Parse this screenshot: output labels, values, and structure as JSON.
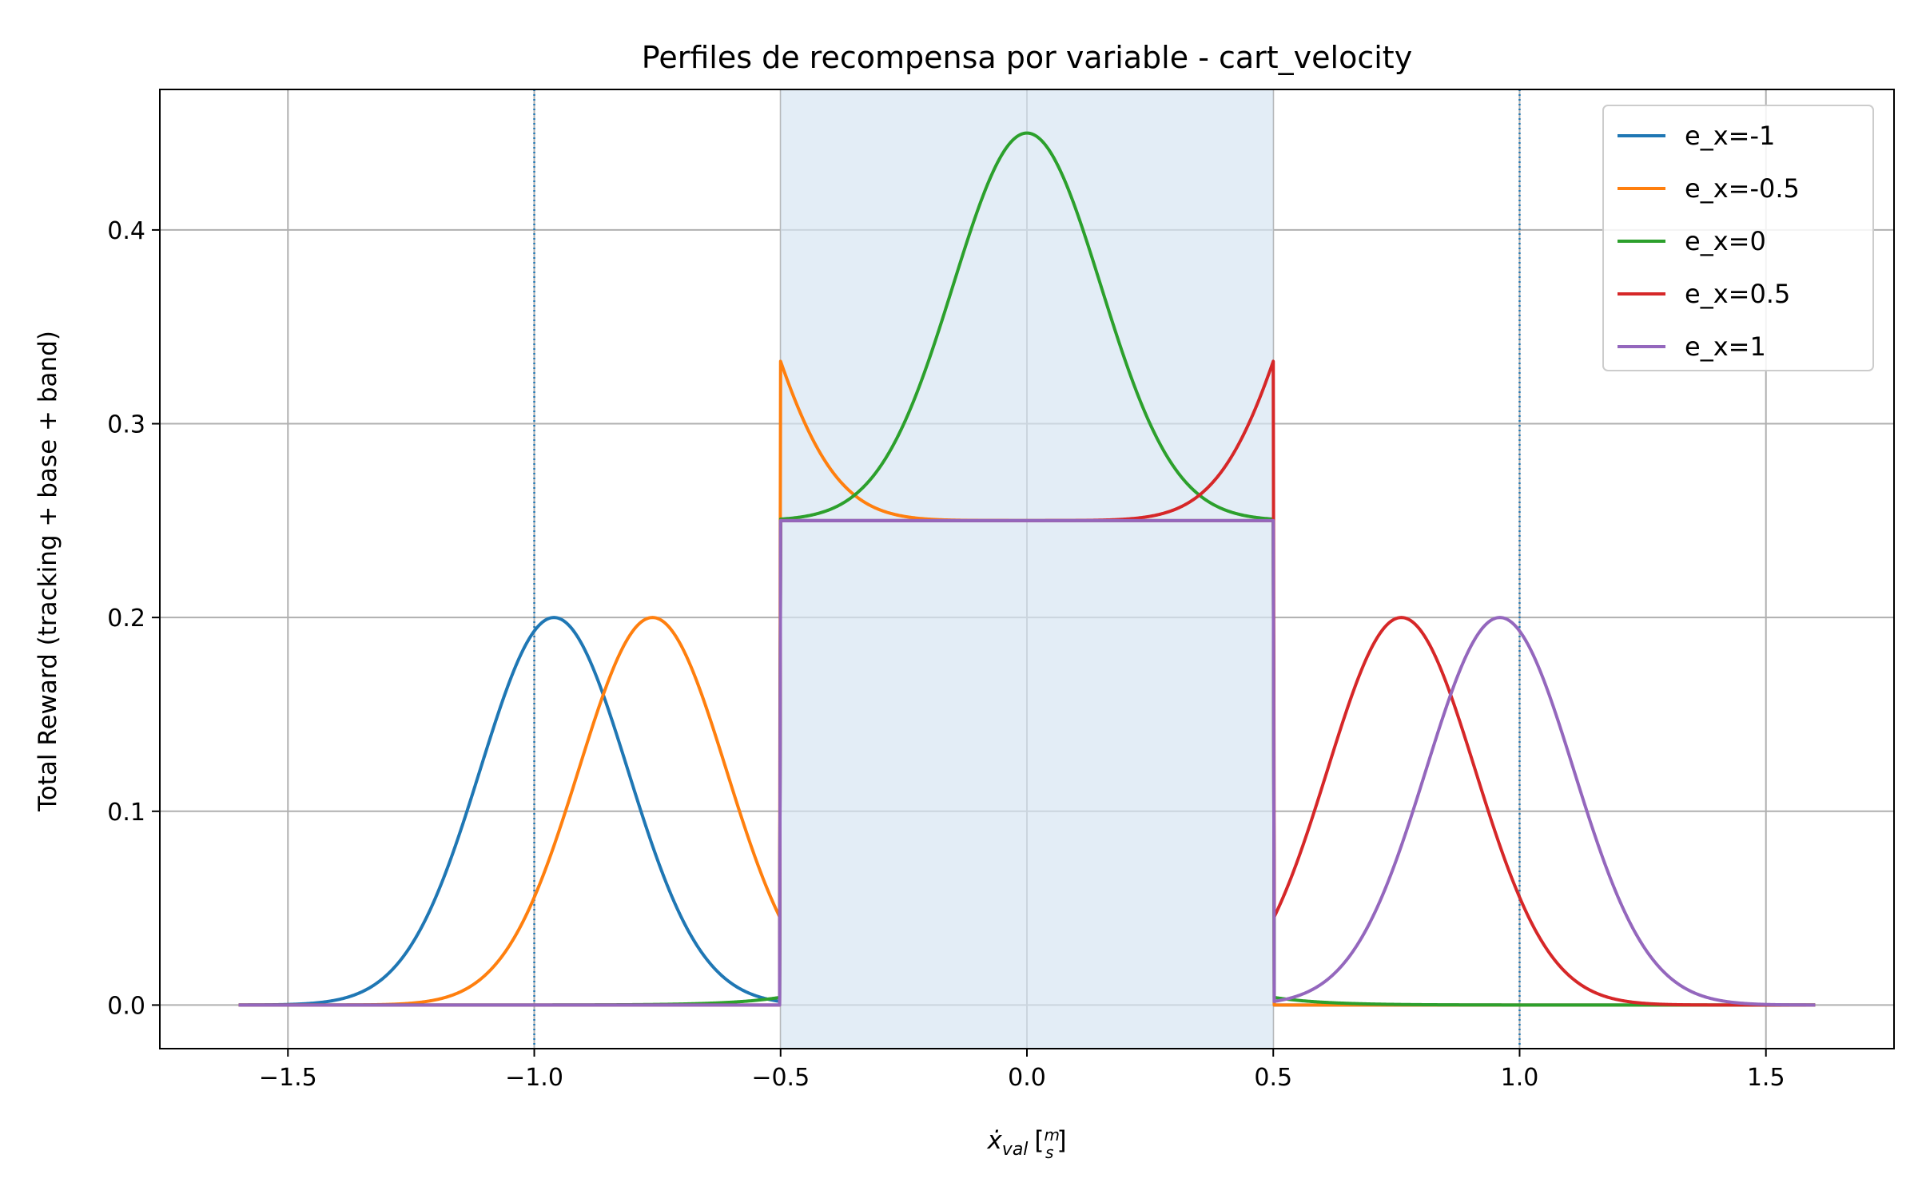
{
  "chart_data": {
    "type": "line",
    "title": "Perfiles de recompensa por variable - cart_velocity",
    "xlabel": "ẋval [m/s]",
    "xlabel_parts": {
      "main": "ẋ",
      "subscript": "val",
      "unit_open": "[",
      "unit_num": "m",
      "unit_den": "s",
      "unit_close": "]"
    },
    "ylabel": "Total Reward (tracking + base + band)",
    "xlim": [
      -1.76,
      1.76
    ],
    "ylim": [
      -0.0225,
      0.4725
    ],
    "xticks": [
      -1.5,
      -1.0,
      -0.5,
      0.0,
      0.5,
      1.0,
      1.5
    ],
    "xtick_labels": [
      "−1.5",
      "−1.0",
      "−0.5",
      "0.0",
      "0.5",
      "1.0",
      "1.5"
    ],
    "yticks": [
      0.0,
      0.1,
      0.2,
      0.3,
      0.4
    ],
    "ytick_labels": [
      "0.0",
      "0.1",
      "0.2",
      "0.3",
      "0.4"
    ],
    "grid": true,
    "legend": "top-right",
    "band": {
      "x0": -0.5,
      "x1": 0.5,
      "color": "#d7e6f2"
    },
    "vlines": [
      -1.0,
      1.0
    ],
    "x_range": [
      -1.6,
      1.6
    ],
    "series": [
      {
        "name": "e_x=-1",
        "ex": -1,
        "color": "#1f77b4"
      },
      {
        "name": "e_x=-0.5",
        "ex": -0.5,
        "color": "#ff7f0e"
      },
      {
        "name": "e_x=0",
        "ex": 0,
        "color": "#2ca02c"
      },
      {
        "name": "e_x=0.5",
        "ex": 0.5,
        "color": "#d62728"
      },
      {
        "name": "e_x=1",
        "ex": 1,
        "color": "#9467bd"
      }
    ]
  }
}
